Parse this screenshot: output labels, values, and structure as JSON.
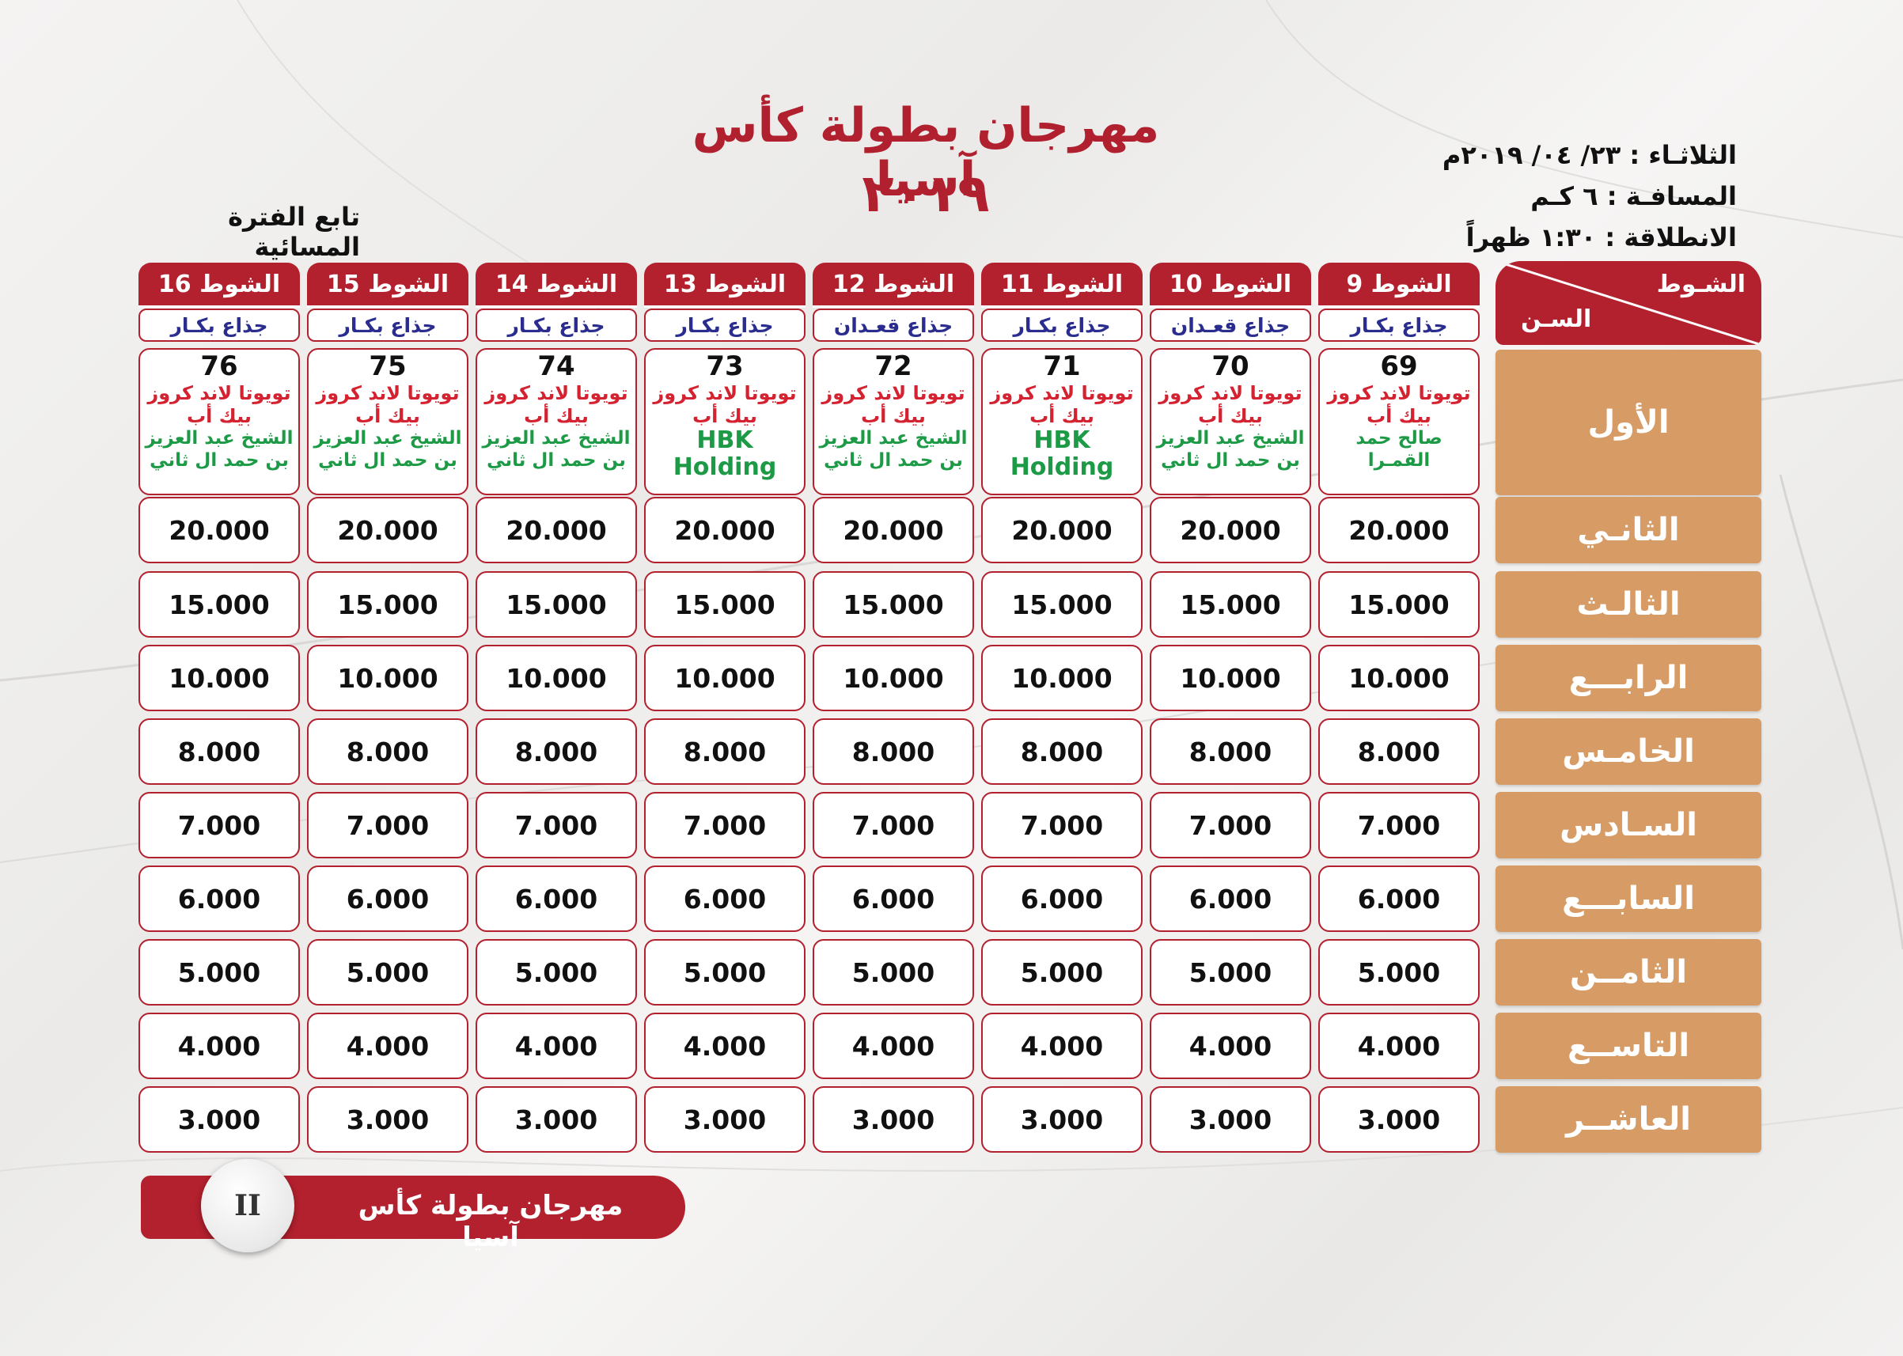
{
  "header": {
    "title": "مهرجان بطولة كأس آسيا",
    "year": "٢٠١٩",
    "subtitle": "تابع الفترة المسائية"
  },
  "info": {
    "date": "الثلاثـاء : ٢٣/ ٠٤/ ٢٠١٩م",
    "distance": "المسافـة : ٦ كـم",
    "start": "الانطلاقة : ١:٣٠ ظهراً"
  },
  "corner": {
    "race_label": "الشـوط",
    "age_label": "السـن"
  },
  "races": [
    {
      "label": "الشوط 9",
      "category": "جذاع بكـار",
      "number": "69",
      "car": "تويوتا لاند كروز",
      "team": "بيك أب",
      "owner1": "صالح حمد",
      "owner2": "القمـرا",
      "owner_big": false
    },
    {
      "label": "الشوط 10",
      "category": "جذاع قعـدان",
      "number": "70",
      "car": "تويوتا لاند كروز",
      "team": "بيك أب",
      "owner1": "الشيخ عبد العزيز",
      "owner2": "بن حمد ال ثاني",
      "owner_big": false
    },
    {
      "label": "الشوط 11",
      "category": "جذاع بكـار",
      "number": "71",
      "car": "تويوتا لاند كروز",
      "team": "بيك أب",
      "owner1": "HBK",
      "owner2": "Holding",
      "owner_big": true
    },
    {
      "label": "الشوط 12",
      "category": "جذاع قعـدان",
      "number": "72",
      "car": "تويوتا لاند كروز",
      "team": "بيك أب",
      "owner1": "الشيخ عبد العزيز",
      "owner2": "بن حمد ال ثاني",
      "owner_big": false
    },
    {
      "label": "الشوط 13",
      "category": "جذاع بكـار",
      "number": "73",
      "car": "تويوتا لاند كروز",
      "team": "بيك أب",
      "owner1": "HBK",
      "owner2": "Holding",
      "owner_big": true
    },
    {
      "label": "الشوط 14",
      "category": "جذاع بكـار",
      "number": "74",
      "car": "تويوتا لاند كروز",
      "team": "بيك أب",
      "owner1": "الشيخ عبد العزيز",
      "owner2": "بن حمد ال ثاني",
      "owner_big": false
    },
    {
      "label": "الشوط 15",
      "category": "جذاع بكـار",
      "number": "75",
      "car": "تويوتا لاند كروز",
      "team": "بيك أب",
      "owner1": "الشيخ عبد العزيز",
      "owner2": "بن حمد ال ثاني",
      "owner_big": false
    },
    {
      "label": "الشوط 16",
      "category": "جذاع بكـار",
      "number": "76",
      "car": "تويوتا لاند كروز",
      "team": "بيك أب",
      "owner1": "الشيخ عبد العزيز",
      "owner2": "بن حمد ال ثاني",
      "owner_big": false
    }
  ],
  "positions": [
    "الأول",
    "الثانـي",
    "الثالـث",
    "الرابـــع",
    "الخامـس",
    "السـادس",
    "السابـــع",
    "الثامــن",
    "التاســع",
    "العاشــر"
  ],
  "prizes": [
    "20.000",
    "15.000",
    "10.000",
    "8.000",
    "7.000",
    "6.000",
    "5.000",
    "4.000",
    "3.000"
  ],
  "footer": {
    "text": "مهرجان بطولة كأس آسيا",
    "page_number": "II"
  },
  "colors": {
    "accent_red": "#b3202e",
    "position_tan": "#d79b66",
    "category_blue": "#2a2d8e",
    "owner_green": "#1c9a45"
  }
}
